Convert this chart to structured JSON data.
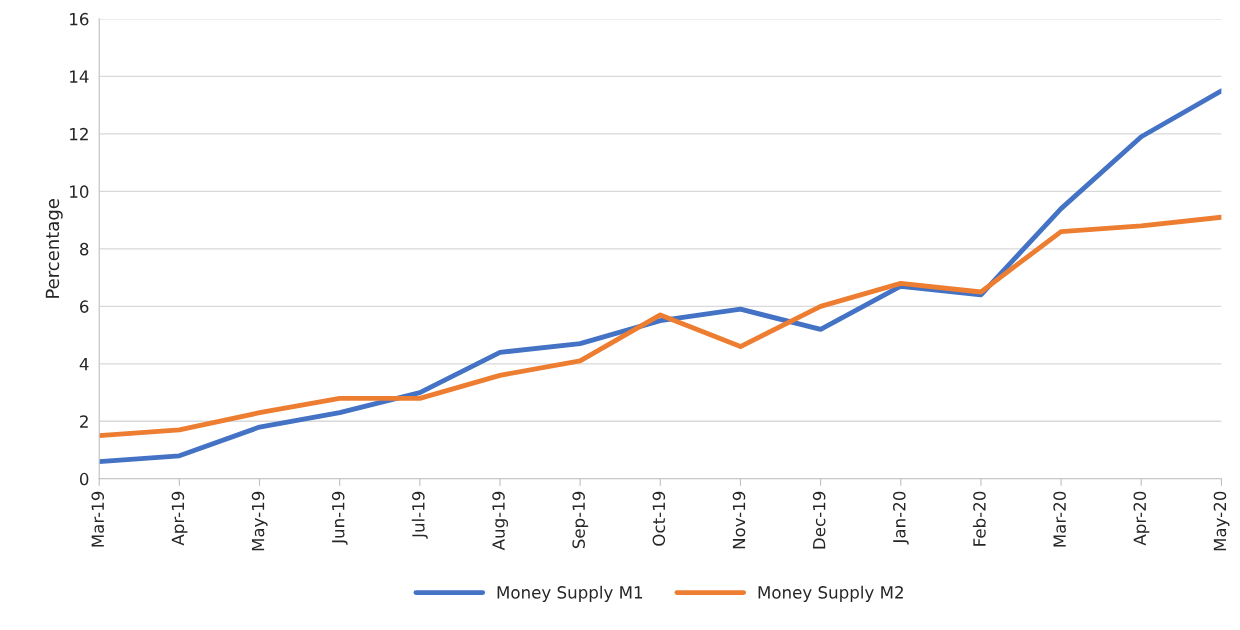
{
  "chart_data": {
    "type": "line",
    "ylabel": "Percentage",
    "categories": [
      "Mar-19",
      "Apr-19",
      "May-19",
      "Jun-19",
      "Jul-19",
      "Aug-19",
      "Sep-19",
      "Oct-19",
      "Nov-19",
      "Dec-19",
      "Jan-20",
      "Feb-20",
      "Mar-20",
      "Apr-20",
      "May-20"
    ],
    "series": [
      {
        "name": "Money Supply M1",
        "color": "#4472c4",
        "values": [
          0.6,
          0.8,
          1.8,
          2.3,
          3.0,
          4.4,
          4.7,
          5.5,
          5.9,
          5.2,
          6.7,
          6.4,
          9.4,
          11.9,
          13.5
        ]
      },
      {
        "name": "Money Supply M2",
        "color": "#ed7d31",
        "values": [
          1.5,
          1.7,
          2.3,
          2.8,
          2.8,
          3.6,
          4.1,
          5.7,
          4.6,
          6.0,
          6.8,
          6.5,
          8.6,
          8.8,
          9.1
        ]
      }
    ],
    "ylim": [
      0,
      16
    ],
    "yticks": [
      0,
      2,
      4,
      6,
      8,
      10,
      12,
      14,
      16
    ],
    "grid": "y",
    "legend": "bottom",
    "marker": "none",
    "line_style": "solid"
  }
}
